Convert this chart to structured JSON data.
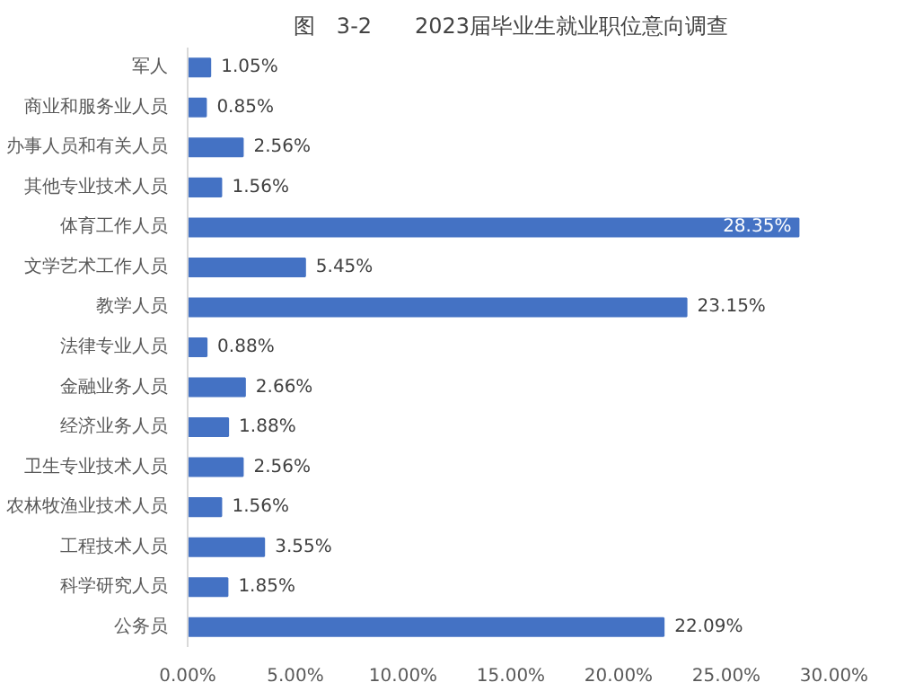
{
  "chart_data": {
    "type": "bar",
    "orientation": "horizontal",
    "title": "图　3-2　　2023届毕业生就业职位意向调查",
    "categories": [
      "军人",
      "商业和服务业人员",
      "办事人员和有关人员",
      "其他专业技术人员",
      "体育工作人员",
      "文学艺术工作人员",
      "教学人员",
      "法律专业人员",
      "金融业务人员",
      "经济业务人员",
      "卫生专业技术人员",
      "农林牧渔业技术人员",
      "工程技术人员",
      "科学研究人员",
      "公务员"
    ],
    "values": [
      1.05,
      0.85,
      2.56,
      1.56,
      28.35,
      5.45,
      23.15,
      0.88,
      2.66,
      1.88,
      2.56,
      1.56,
      3.55,
      1.85,
      22.09
    ],
    "value_labels": [
      "1.05%",
      "0.85%",
      "2.56%",
      "1.56%",
      "28.35%",
      "5.45%",
      "23.15%",
      "0.88%",
      "2.66%",
      "1.88%",
      "2.56%",
      "1.56%",
      "3.55%",
      "1.85%",
      "22.09%"
    ],
    "color": "#4472c4",
    "xlim": [
      0,
      30
    ],
    "xticks": [
      {
        "value": 0,
        "label": "0.00%"
      },
      {
        "value": 5,
        "label": "5.00%"
      },
      {
        "value": 10,
        "label": "10.00%"
      },
      {
        "value": 15,
        "label": "15.00%"
      },
      {
        "value": 20,
        "label": "20.00%"
      },
      {
        "value": 25,
        "label": "25.00%"
      },
      {
        "value": 30,
        "label": "30.00%"
      }
    ],
    "grid": false
  }
}
